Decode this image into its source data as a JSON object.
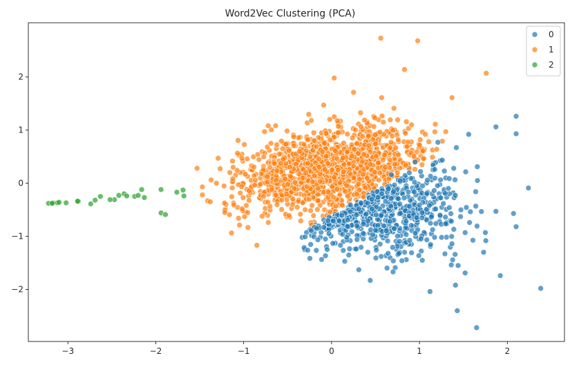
{
  "chart_data": {
    "type": "scatter",
    "title": "Word2Vec Clustering (PCA)",
    "xlabel": "",
    "ylabel": "",
    "xlim": [
      -3.45,
      2.65
    ],
    "ylim": [
      -2.98,
      3.02
    ],
    "x_ticks": [
      -3,
      -2,
      -1,
      0,
      1,
      2
    ],
    "y_ticks": [
      -2,
      -1,
      0,
      1,
      2
    ],
    "x_tick_labels": [
      "−3",
      "−2",
      "−1",
      "0",
      "1",
      "2"
    ],
    "y_tick_labels": [
      "−2",
      "−1",
      "0",
      "1",
      "2"
    ],
    "grid": false,
    "legend_position": "top-right",
    "series": [
      {
        "name": "0",
        "color": "#1f77b4",
        "approx_point_count": 700,
        "highlight_points": [
          [
            1.65,
            -2.72
          ],
          [
            1.43,
            -2.4
          ],
          [
            1.12,
            -2.04
          ],
          [
            1.41,
            -1.92
          ],
          [
            2.38,
            -1.98
          ],
          [
            1.92,
            -1.74
          ],
          [
            1.52,
            -1.69
          ],
          [
            0.44,
            -1.83
          ],
          [
            0.7,
            -1.67
          ],
          [
            0.31,
            -1.63
          ],
          [
            0.85,
            -1.44
          ],
          [
            0.8,
            -1.46
          ],
          [
            1.44,
            -1.55
          ],
          [
            1.73,
            -1.3
          ],
          [
            1.29,
            -1.33
          ],
          [
            2.24,
            -0.09
          ],
          [
            2.1,
            1.26
          ],
          [
            2.1,
            0.93
          ],
          [
            1.87,
            1.06
          ],
          [
            1.56,
            0.92
          ],
          [
            2.1,
            -0.82
          ],
          [
            2.07,
            -0.57
          ],
          [
            1.87,
            -0.53
          ],
          [
            1.75,
            -0.93
          ],
          [
            1.64,
            -0.16
          ],
          [
            1.66,
            0.05
          ],
          [
            1.42,
            0.67
          ],
          [
            1.39,
            0.28
          ],
          [
            1.57,
            -0.74
          ],
          [
            1.21,
            0.77
          ],
          [
            0.95,
            0.4
          ],
          [
            0.68,
            0.16
          ],
          [
            -0.3,
            -1.01
          ],
          [
            -0.17,
            -0.85
          ],
          [
            -0.05,
            -1.25
          ],
          [
            0.15,
            -1.47
          ],
          [
            -0.03,
            -0.95
          ],
          [
            1.34,
            -0.46
          ],
          [
            1.37,
            -1.14
          ],
          [
            1.52,
            -0.93
          ]
        ],
        "cluster_center": [
          0.6,
          -0.52
        ],
        "cluster_spread": [
          0.42,
          0.42
        ]
      },
      {
        "name": "1",
        "color": "#ff7f0e",
        "approx_point_count": 1400,
        "highlight_points": [
          [
            0.56,
            2.73
          ],
          [
            0.98,
            2.68
          ],
          [
            1.76,
            2.07
          ],
          [
            0.83,
            2.14
          ],
          [
            0.03,
            1.98
          ],
          [
            -0.09,
            1.47
          ],
          [
            1.37,
            1.61
          ],
          [
            0.57,
            1.61
          ],
          [
            0.25,
            1.71
          ],
          [
            0.71,
            1.41
          ],
          [
            -0.72,
            1.08
          ],
          [
            -0.23,
            1.18
          ],
          [
            -0.69,
            0.75
          ],
          [
            -1.53,
            0.28
          ],
          [
            -1.29,
            0.47
          ],
          [
            -0.85,
            -1.17
          ],
          [
            -0.99,
            -0.63
          ],
          [
            -0.97,
            -0.42
          ],
          [
            -0.72,
            -0.74
          ],
          [
            -1.02,
            0.47
          ],
          [
            -1.47,
            -0.07
          ],
          [
            -1.41,
            -0.33
          ],
          [
            -1.37,
            0.06
          ],
          [
            -0.35,
            -0.71
          ],
          [
            1.26,
            0.79
          ],
          [
            1.18,
            1.11
          ],
          [
            1.3,
            0.97
          ],
          [
            0.91,
            1.1
          ],
          [
            -0.43,
            0.87
          ],
          [
            1.04,
            0.61
          ],
          [
            -1.38,
            -0.35
          ],
          [
            -1.47,
            -0.22
          ],
          [
            -1.31,
            0.0
          ],
          [
            -1.12,
            0.3
          ],
          [
            -0.84,
            0.54
          ]
        ],
        "cluster_center": [
          -0.05,
          0.25
        ],
        "cluster_spread": [
          0.48,
          0.36
        ]
      },
      {
        "name": "2",
        "color": "#2ca02c",
        "approx_point_count": 26,
        "points": [
          [
            -3.22,
            -0.38
          ],
          [
            -3.17,
            -0.37
          ],
          [
            -3.12,
            -0.37
          ],
          [
            -3.02,
            -0.37
          ],
          [
            -2.88,
            -0.34
          ],
          [
            -2.89,
            -0.34
          ],
          [
            -2.74,
            -0.39
          ],
          [
            -2.69,
            -0.32
          ],
          [
            -2.63,
            -0.25
          ],
          [
            -2.47,
            -0.31
          ],
          [
            -2.42,
            -0.23
          ],
          [
            -2.36,
            -0.2
          ],
          [
            -2.33,
            -0.24
          ],
          [
            -2.24,
            -0.25
          ],
          [
            -2.16,
            -0.12
          ],
          [
            -2.13,
            -0.27
          ],
          [
            -1.94,
            -0.12
          ],
          [
            -1.94,
            -0.56
          ],
          [
            -1.89,
            -0.59
          ],
          [
            -1.76,
            -0.17
          ],
          [
            -1.69,
            -0.13
          ],
          [
            -1.68,
            -0.24
          ],
          [
            -3.18,
            -0.38
          ],
          [
            -3.1,
            -0.36
          ],
          [
            -2.52,
            -0.31
          ],
          [
            -2.2,
            -0.23
          ]
        ]
      }
    ]
  }
}
